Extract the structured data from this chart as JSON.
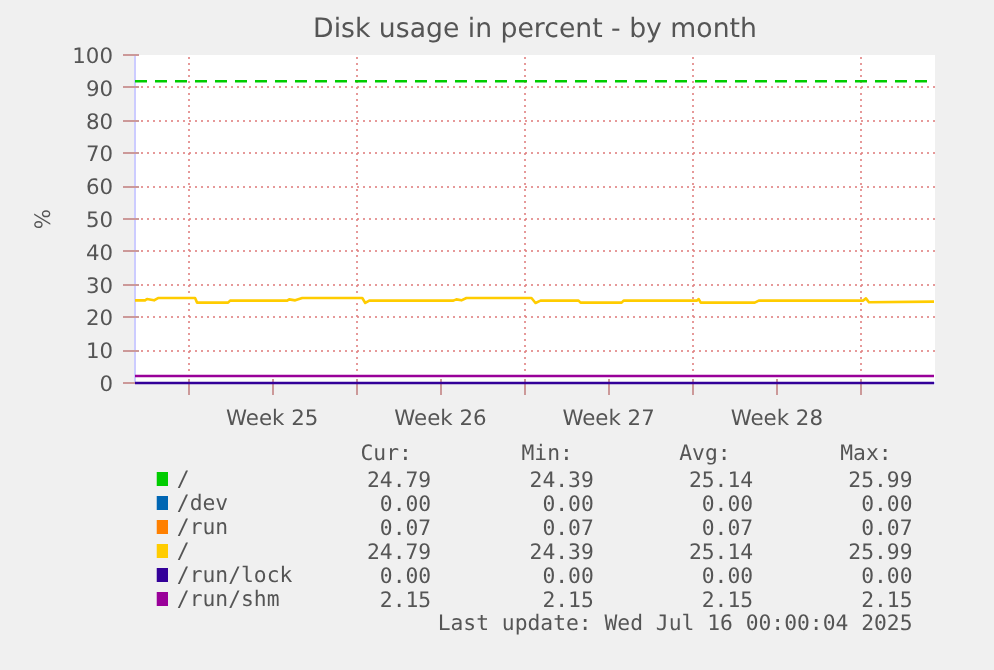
{
  "chart_data": {
    "type": "line",
    "title": "Disk usage in percent - by month",
    "ylabel": "%",
    "xlim": [
      "2025-06-12T19:00",
      "2025-07-16T02:00"
    ],
    "ylim": [
      0,
      100
    ],
    "xticks": [
      {
        "value": "2025-06-15",
        "label": null
      },
      {
        "value": "2025-06-18T12:00",
        "label": "Week 25"
      },
      {
        "value": "2025-06-22",
        "label": null
      },
      {
        "value": "2025-06-25T12:00",
        "label": "Week 26"
      },
      {
        "value": "2025-06-29",
        "label": null
      },
      {
        "value": "2025-07-02T12:00",
        "label": "Week 27"
      },
      {
        "value": "2025-07-06",
        "label": null
      },
      {
        "value": "2025-07-09T12:00",
        "label": "Week 28"
      },
      {
        "value": "2025-07-13",
        "label": null
      }
    ],
    "yticks": [
      0,
      10,
      20,
      30,
      40,
      50,
      60,
      70,
      80,
      90,
      100
    ],
    "grid": true,
    "legend": "bottom",
    "series": [
      {
        "name": "/",
        "color": "#00cc00"
      },
      {
        "name": "/dev",
        "color": "#0066b3"
      },
      {
        "name": "/run",
        "color": "#ff8000"
      },
      {
        "name": "/",
        "color": "#ffcc00",
        "x": [
          "2025-06-12T19:00",
          "2025-06-13T05:00",
          "2025-06-13T07:00",
          "2025-06-13T14:00",
          "2025-06-13T18:00",
          "2025-06-15T07:00",
          "2025-06-15T09:00",
          "2025-06-16T16:00",
          "2025-06-16T18:00",
          "2025-06-19T03:00",
          "2025-06-19T05:00",
          "2025-06-19T11:00",
          "2025-06-19T18:00",
          "2025-06-22T06:00",
          "2025-06-22T09:00",
          "2025-06-22T13:00",
          "2025-06-26T01:00",
          "2025-06-26T04:00",
          "2025-06-26T09:00",
          "2025-06-26T14:00",
          "2025-06-29T07:00",
          "2025-06-29T11:00",
          "2025-06-29T16:00",
          "2025-07-01T06:00",
          "2025-07-01T08:00",
          "2025-07-03T01:00",
          "2025-07-03T03:00",
          "2025-07-06T04:00",
          "2025-07-06T06:00",
          "2025-07-06T08:00",
          "2025-07-08T14:00",
          "2025-07-08T18:00",
          "2025-07-13T02:00",
          "2025-07-13T05:00",
          "2025-07-13T08:00",
          "2025-07-16T01:00"
        ],
        "values": [
          25.2,
          25.2,
          25.6,
          25.2,
          25.9,
          25.9,
          24.5,
          24.5,
          25.1,
          25.1,
          25.5,
          25.2,
          25.9,
          25.9,
          24.4,
          25.1,
          25.1,
          25.5,
          25.2,
          25.9,
          25.9,
          24.4,
          25.1,
          25.1,
          24.5,
          24.5,
          25.1,
          25.1,
          25.6,
          24.5,
          24.5,
          25.1,
          25.1,
          25.8,
          24.6,
          24.8
        ]
      },
      {
        "name": "/run/lock",
        "color": "#330099",
        "x": [
          "2025-06-12T19:00",
          "2025-07-16T01:00"
        ],
        "values": [
          0,
          0
        ]
      },
      {
        "name": "/run/shm",
        "color": "#990099",
        "x": [
          "2025-06-12T19:00",
          "2025-07-16T01:00"
        ],
        "values": [
          2.15,
          2.15
        ]
      }
    ],
    "ref_lines": [
      {
        "axis": "y",
        "value": 92,
        "label": null,
        "color": "#00cc00",
        "line_style": "dashed"
      }
    ],
    "annotations": [
      "Cur:",
      "Min:",
      "Avg:",
      "Max:",
      "24.79",
      "24.39",
      "25.14",
      "25.99",
      "0.00",
      "0.00",
      "0.00",
      "0.00",
      "0.07",
      "0.07",
      "0.07",
      "0.07",
      "24.79",
      "24.39",
      "25.14",
      "25.99",
      "0.00",
      "0.00",
      "0.00",
      "0.00",
      "2.15",
      "2.15",
      "2.15",
      "2.15",
      "Last update: Wed Jul 16 00:00:04 2025"
    ]
  }
}
